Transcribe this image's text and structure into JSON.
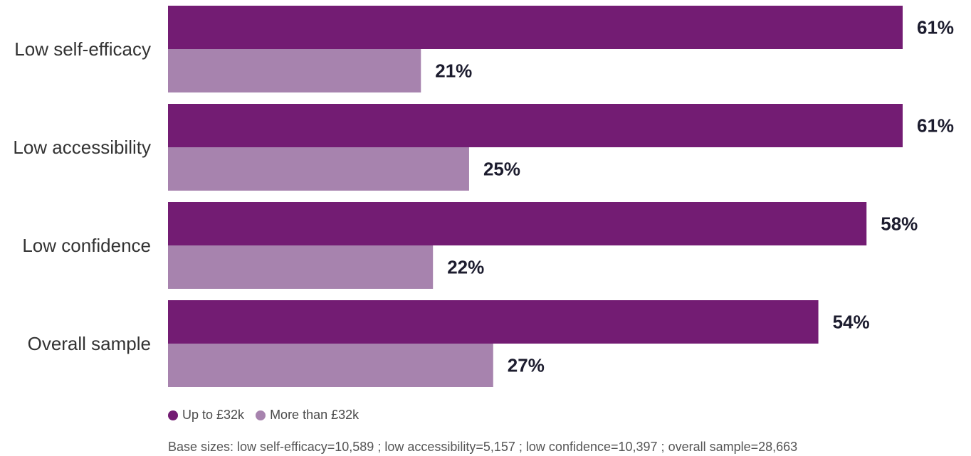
{
  "chart_data": {
    "type": "bar",
    "orientation": "horizontal",
    "categories": [
      "Low self-efficacy",
      "Low accessibility",
      "Low confidence",
      "Overall sample"
    ],
    "series": [
      {
        "name": "Up to £32k",
        "values": [
          61,
          61,
          58,
          54
        ],
        "labels": [
          "61%",
          "61%",
          "58%",
          "54%"
        ],
        "color": "#731c73"
      },
      {
        "name": "More than £32k",
        "values": [
          21,
          25,
          22,
          27
        ],
        "labels": [
          "21%",
          "25%",
          "22%",
          "27%"
        ],
        "color": "#a783ae"
      }
    ],
    "xlim": [
      0,
      61
    ],
    "grid": false,
    "legend_position": "bottom-left"
  },
  "legend": {
    "items": [
      {
        "label": "Up to £32k",
        "color": "#731c73"
      },
      {
        "label": "More than £32k",
        "color": "#a783ae"
      }
    ]
  },
  "footnote": "Base sizes: low self-efficacy=10,589 ; low accessibility=5,157 ; low confidence=10,397 ; overall sample=28,663"
}
